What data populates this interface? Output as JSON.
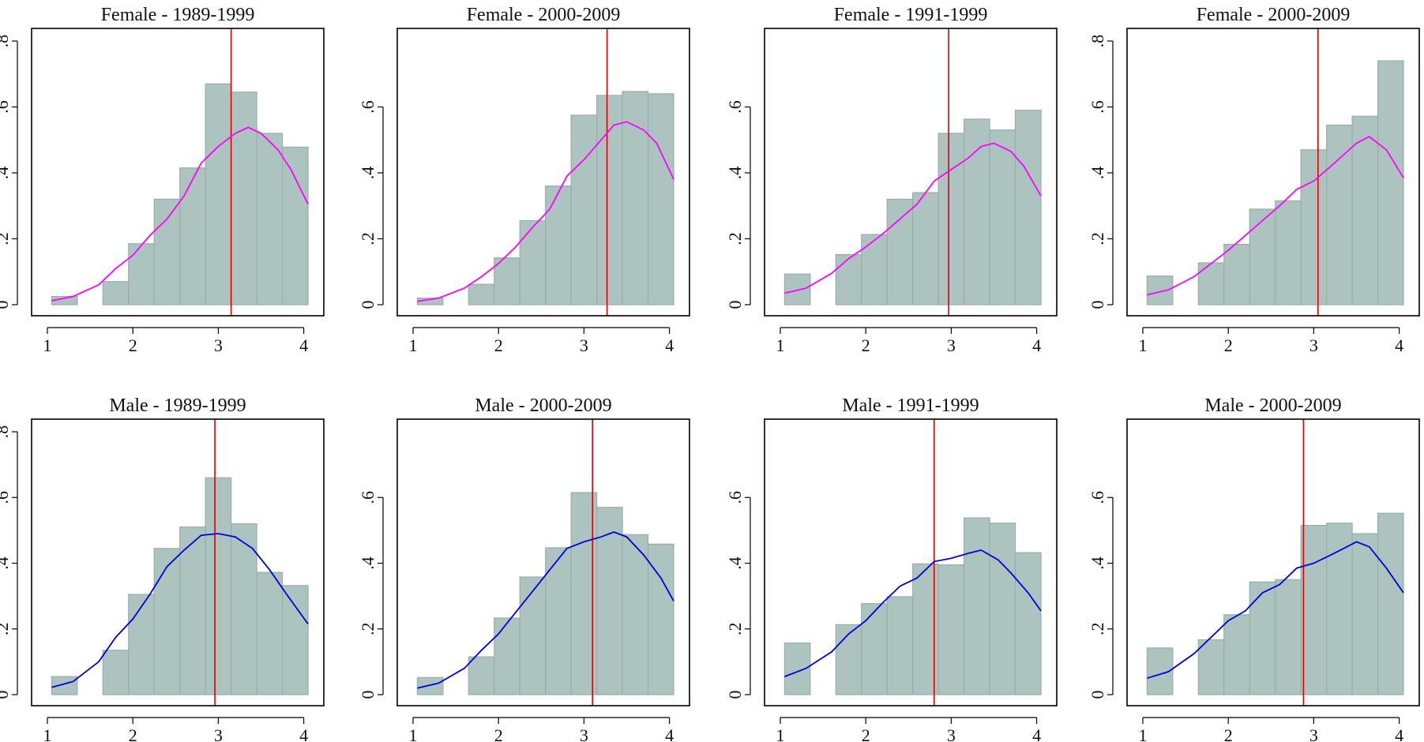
{
  "colors": {
    "bar_fill": "#adc3bf",
    "female_line": "#ff00ff",
    "male_line": "#0000dd",
    "reference_line": "#e00000"
  },
  "chart_data": [
    {
      "type": "bar",
      "title": "Female - 1989-1999",
      "series_color": "#ff00ff",
      "xlim": [
        1,
        4.05
      ],
      "ylim": [
        0,
        0.8
      ],
      "xticks": [
        1,
        2,
        3,
        4
      ],
      "yticks": [
        "0",
        ".2",
        ".4",
        ".6",
        ".8"
      ],
      "bins": [
        [
          1.05,
          1.35,
          0.025
        ],
        [
          1.65,
          1.95,
          0.07
        ],
        [
          1.95,
          2.25,
          0.185
        ],
        [
          2.25,
          2.55,
          0.32
        ],
        [
          2.55,
          2.85,
          0.415
        ],
        [
          2.85,
          3.15,
          0.67
        ],
        [
          3.15,
          3.45,
          0.645
        ],
        [
          3.45,
          3.75,
          0.52
        ],
        [
          3.75,
          4.05,
          0.478
        ]
      ],
      "vline": 3.15,
      "density": [
        [
          1.05,
          0.012
        ],
        [
          1.3,
          0.025
        ],
        [
          1.6,
          0.06
        ],
        [
          1.8,
          0.11
        ],
        [
          2.0,
          0.15
        ],
        [
          2.2,
          0.21
        ],
        [
          2.4,
          0.26
        ],
        [
          2.6,
          0.33
        ],
        [
          2.8,
          0.43
        ],
        [
          3.0,
          0.48
        ],
        [
          3.2,
          0.52
        ],
        [
          3.35,
          0.538
        ],
        [
          3.5,
          0.52
        ],
        [
          3.7,
          0.47
        ],
        [
          3.85,
          0.41
        ],
        [
          4.05,
          0.305
        ]
      ]
    },
    {
      "type": "bar",
      "title": "Female - 2000-2009",
      "series_color": "#ff00ff",
      "xlim": [
        1,
        4.05
      ],
      "ylim": [
        0,
        0.8
      ],
      "xticks": [
        1,
        2,
        3,
        4
      ],
      "yticks": [
        "0",
        ".2",
        ".4",
        ".6"
      ],
      "bins": [
        [
          1.05,
          1.35,
          0.02
        ],
        [
          1.65,
          1.95,
          0.062
        ],
        [
          1.95,
          2.25,
          0.142
        ],
        [
          2.25,
          2.55,
          0.255
        ],
        [
          2.55,
          2.85,
          0.36
        ],
        [
          2.85,
          3.15,
          0.575
        ],
        [
          3.15,
          3.45,
          0.635
        ],
        [
          3.45,
          3.75,
          0.647
        ],
        [
          3.75,
          4.05,
          0.64
        ]
      ],
      "vline": 3.27,
      "density": [
        [
          1.05,
          0.01
        ],
        [
          1.3,
          0.02
        ],
        [
          1.6,
          0.05
        ],
        [
          1.8,
          0.085
        ],
        [
          2.0,
          0.125
        ],
        [
          2.2,
          0.175
        ],
        [
          2.4,
          0.235
        ],
        [
          2.6,
          0.29
        ],
        [
          2.8,
          0.39
        ],
        [
          3.0,
          0.44
        ],
        [
          3.2,
          0.5
        ],
        [
          3.35,
          0.545
        ],
        [
          3.5,
          0.555
        ],
        [
          3.7,
          0.53
        ],
        [
          3.85,
          0.49
        ],
        [
          4.05,
          0.38
        ]
      ]
    },
    {
      "type": "bar",
      "title": "Female - 1991-1999",
      "series_color": "#ff00ff",
      "xlim": [
        1,
        4.05
      ],
      "ylim": [
        0,
        0.8
      ],
      "xticks": [
        1,
        2,
        3,
        4
      ],
      "yticks": [
        "0",
        ".2",
        ".4",
        ".6"
      ],
      "bins": [
        [
          1.05,
          1.35,
          0.093
        ],
        [
          1.65,
          1.95,
          0.152
        ],
        [
          1.95,
          2.25,
          0.213
        ],
        [
          2.25,
          2.55,
          0.32
        ],
        [
          2.55,
          2.85,
          0.34
        ],
        [
          2.85,
          3.15,
          0.52
        ],
        [
          3.15,
          3.45,
          0.563
        ],
        [
          3.45,
          3.75,
          0.53
        ],
        [
          3.75,
          4.05,
          0.59
        ]
      ],
      "vline": 2.97,
      "density": [
        [
          1.05,
          0.035
        ],
        [
          1.3,
          0.05
        ],
        [
          1.6,
          0.095
        ],
        [
          1.8,
          0.14
        ],
        [
          2.0,
          0.175
        ],
        [
          2.2,
          0.215
        ],
        [
          2.4,
          0.26
        ],
        [
          2.6,
          0.305
        ],
        [
          2.8,
          0.375
        ],
        [
          3.0,
          0.41
        ],
        [
          3.2,
          0.445
        ],
        [
          3.35,
          0.48
        ],
        [
          3.5,
          0.49
        ],
        [
          3.7,
          0.465
        ],
        [
          3.85,
          0.42
        ],
        [
          4.05,
          0.33
        ]
      ]
    },
    {
      "type": "bar",
      "title": "Female - 2000-2009",
      "series_color": "#ff00ff",
      "xlim": [
        1,
        4.05
      ],
      "ylim": [
        0,
        0.8
      ],
      "xticks": [
        1,
        2,
        3,
        4
      ],
      "yticks": [
        "0",
        ".2",
        ".4",
        ".6",
        ".8"
      ],
      "bins": [
        [
          1.05,
          1.35,
          0.087
        ],
        [
          1.65,
          1.95,
          0.127
        ],
        [
          1.95,
          2.25,
          0.183
        ],
        [
          2.25,
          2.55,
          0.29
        ],
        [
          2.55,
          2.85,
          0.315
        ],
        [
          2.85,
          3.15,
          0.47
        ],
        [
          3.15,
          3.45,
          0.545
        ],
        [
          3.45,
          3.75,
          0.572
        ],
        [
          3.75,
          4.05,
          0.74
        ]
      ],
      "vline": 3.05,
      "density": [
        [
          1.05,
          0.03
        ],
        [
          1.3,
          0.045
        ],
        [
          1.6,
          0.085
        ],
        [
          1.8,
          0.125
        ],
        [
          2.0,
          0.165
        ],
        [
          2.2,
          0.21
        ],
        [
          2.4,
          0.255
        ],
        [
          2.6,
          0.3
        ],
        [
          2.8,
          0.35
        ],
        [
          3.0,
          0.375
        ],
        [
          3.2,
          0.42
        ],
        [
          3.35,
          0.455
        ],
        [
          3.5,
          0.49
        ],
        [
          3.65,
          0.51
        ],
        [
          3.85,
          0.47
        ],
        [
          4.05,
          0.385
        ]
      ]
    },
    {
      "type": "bar",
      "title": "Male - 1989-1999",
      "series_color": "#0000dd",
      "xlim": [
        1,
        4.05
      ],
      "ylim": [
        0,
        0.8
      ],
      "xticks": [
        1,
        2,
        3,
        4
      ],
      "yticks": [
        "0",
        ".2",
        ".4",
        ".6",
        ".8"
      ],
      "bins": [
        [
          1.05,
          1.35,
          0.055
        ],
        [
          1.65,
          1.95,
          0.135
        ],
        [
          1.95,
          2.25,
          0.305
        ],
        [
          2.25,
          2.55,
          0.445
        ],
        [
          2.55,
          2.85,
          0.51
        ],
        [
          2.85,
          3.15,
          0.66
        ],
        [
          3.15,
          3.45,
          0.52
        ],
        [
          3.45,
          3.75,
          0.372
        ],
        [
          3.75,
          4.05,
          0.332
        ]
      ],
      "vline": 2.96,
      "density": [
        [
          1.05,
          0.022
        ],
        [
          1.3,
          0.04
        ],
        [
          1.6,
          0.1
        ],
        [
          1.8,
          0.175
        ],
        [
          2.0,
          0.23
        ],
        [
          2.2,
          0.305
        ],
        [
          2.4,
          0.39
        ],
        [
          2.6,
          0.44
        ],
        [
          2.8,
          0.485
        ],
        [
          3.0,
          0.49
        ],
        [
          3.2,
          0.48
        ],
        [
          3.4,
          0.445
        ],
        [
          3.6,
          0.38
        ],
        [
          3.8,
          0.305
        ],
        [
          4.05,
          0.215
        ]
      ]
    },
    {
      "type": "bar",
      "title": "Male - 2000-2009",
      "series_color": "#0000dd",
      "xlim": [
        1,
        4.05
      ],
      "ylim": [
        0,
        0.8
      ],
      "xticks": [
        1,
        2,
        3,
        4
      ],
      "yticks": [
        "0",
        ".2",
        ".4",
        ".6"
      ],
      "bins": [
        [
          1.05,
          1.35,
          0.052
        ],
        [
          1.65,
          1.95,
          0.115
        ],
        [
          1.95,
          2.25,
          0.233
        ],
        [
          2.25,
          2.55,
          0.358
        ],
        [
          2.55,
          2.85,
          0.447
        ],
        [
          2.85,
          3.15,
          0.615
        ],
        [
          3.15,
          3.45,
          0.57
        ],
        [
          3.45,
          3.75,
          0.487
        ],
        [
          3.75,
          4.05,
          0.458
        ]
      ],
      "vline": 3.1,
      "density": [
        [
          1.05,
          0.02
        ],
        [
          1.3,
          0.035
        ],
        [
          1.6,
          0.08
        ],
        [
          1.8,
          0.135
        ],
        [
          2.0,
          0.185
        ],
        [
          2.2,
          0.25
        ],
        [
          2.4,
          0.315
        ],
        [
          2.6,
          0.38
        ],
        [
          2.8,
          0.445
        ],
        [
          3.0,
          0.465
        ],
        [
          3.2,
          0.48
        ],
        [
          3.35,
          0.495
        ],
        [
          3.5,
          0.48
        ],
        [
          3.7,
          0.425
        ],
        [
          3.9,
          0.355
        ],
        [
          4.05,
          0.285
        ]
      ]
    },
    {
      "type": "bar",
      "title": "Male - 1991-1999",
      "series_color": "#0000dd",
      "xlim": [
        1,
        4.05
      ],
      "ylim": [
        0,
        0.8
      ],
      "xticks": [
        1,
        2,
        3,
        4
      ],
      "yticks": [
        "0",
        ".2",
        ".4",
        ".6"
      ],
      "bins": [
        [
          1.05,
          1.35,
          0.157
        ],
        [
          1.65,
          1.95,
          0.213
        ],
        [
          1.95,
          2.25,
          0.277
        ],
        [
          2.25,
          2.55,
          0.298
        ],
        [
          2.55,
          2.85,
          0.398
        ],
        [
          2.85,
          3.15,
          0.395
        ],
        [
          3.15,
          3.45,
          0.538
        ],
        [
          3.45,
          3.75,
          0.522
        ],
        [
          3.75,
          4.05,
          0.432
        ]
      ],
      "vline": 2.8,
      "density": [
        [
          1.05,
          0.055
        ],
        [
          1.3,
          0.08
        ],
        [
          1.6,
          0.13
        ],
        [
          1.8,
          0.185
        ],
        [
          2.0,
          0.225
        ],
        [
          2.2,
          0.28
        ],
        [
          2.4,
          0.33
        ],
        [
          2.6,
          0.355
        ],
        [
          2.8,
          0.405
        ],
        [
          3.0,
          0.415
        ],
        [
          3.2,
          0.43
        ],
        [
          3.35,
          0.44
        ],
        [
          3.55,
          0.41
        ],
        [
          3.7,
          0.37
        ],
        [
          3.9,
          0.31
        ],
        [
          4.05,
          0.255
        ]
      ]
    },
    {
      "type": "bar",
      "title": "Male - 2000-2009",
      "series_color": "#0000dd",
      "xlim": [
        1,
        4.05
      ],
      "ylim": [
        0,
        0.8
      ],
      "xticks": [
        1,
        2,
        3,
        4
      ],
      "yticks": [
        "0",
        ".2",
        ".4",
        ".6"
      ],
      "bins": [
        [
          1.05,
          1.35,
          0.142
        ],
        [
          1.65,
          1.95,
          0.167
        ],
        [
          1.95,
          2.25,
          0.243
        ],
        [
          2.25,
          2.55,
          0.343
        ],
        [
          2.55,
          2.85,
          0.35
        ],
        [
          2.85,
          3.15,
          0.515
        ],
        [
          3.15,
          3.45,
          0.522
        ],
        [
          3.45,
          3.75,
          0.49
        ],
        [
          3.75,
          4.05,
          0.552
        ]
      ],
      "vline": 2.88,
      "density": [
        [
          1.05,
          0.05
        ],
        [
          1.3,
          0.07
        ],
        [
          1.6,
          0.125
        ],
        [
          1.8,
          0.175
        ],
        [
          2.0,
          0.225
        ],
        [
          2.2,
          0.255
        ],
        [
          2.4,
          0.31
        ],
        [
          2.6,
          0.335
        ],
        [
          2.8,
          0.385
        ],
        [
          3.0,
          0.4
        ],
        [
          3.2,
          0.425
        ],
        [
          3.35,
          0.445
        ],
        [
          3.5,
          0.465
        ],
        [
          3.65,
          0.45
        ],
        [
          3.85,
          0.385
        ],
        [
          4.05,
          0.31
        ]
      ]
    }
  ]
}
